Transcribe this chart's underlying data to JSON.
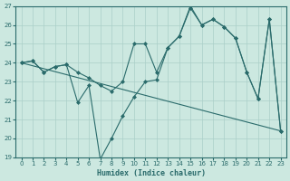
{
  "xlabel": "Humidex (Indice chaleur)",
  "xlim": [
    -0.5,
    23.5
  ],
  "ylim": [
    19,
    27
  ],
  "yticks": [
    19,
    20,
    21,
    22,
    23,
    24,
    25,
    26,
    27
  ],
  "xticks": [
    0,
    1,
    2,
    3,
    4,
    5,
    6,
    7,
    8,
    9,
    10,
    11,
    12,
    13,
    14,
    15,
    16,
    17,
    18,
    19,
    20,
    21,
    22,
    23
  ],
  "bg_color": "#cce8e0",
  "line_color": "#2a6b6b",
  "grid_color": "#aacfc8",
  "line1_x": [
    0,
    1,
    2,
    3,
    4,
    5,
    6,
    7,
    8,
    9,
    10,
    11,
    12,
    13,
    14,
    15,
    16,
    17,
    18,
    19,
    20,
    21,
    22,
    23
  ],
  "line1_y": [
    24.0,
    24.1,
    23.5,
    23.8,
    23.9,
    21.9,
    22.8,
    18.9,
    20.0,
    21.2,
    22.2,
    23.0,
    23.1,
    24.8,
    25.4,
    26.9,
    26.0,
    26.3,
    25.9,
    25.3,
    23.5,
    22.1,
    26.3,
    20.4
  ],
  "line2_x": [
    0,
    1,
    2,
    3,
    4,
    5,
    6,
    7,
    8,
    9,
    10,
    11,
    12,
    13,
    14,
    15,
    16,
    17,
    18,
    19,
    20,
    21,
    22,
    23
  ],
  "line2_y": [
    24.0,
    24.1,
    23.5,
    23.8,
    23.9,
    23.5,
    23.2,
    22.8,
    22.5,
    23.0,
    25.0,
    25.0,
    23.5,
    24.8,
    25.4,
    27.0,
    26.0,
    26.3,
    25.9,
    25.3,
    23.5,
    22.1,
    26.3,
    20.4
  ],
  "line3_x": [
    0,
    23
  ],
  "line3_y": [
    24.0,
    20.4
  ]
}
